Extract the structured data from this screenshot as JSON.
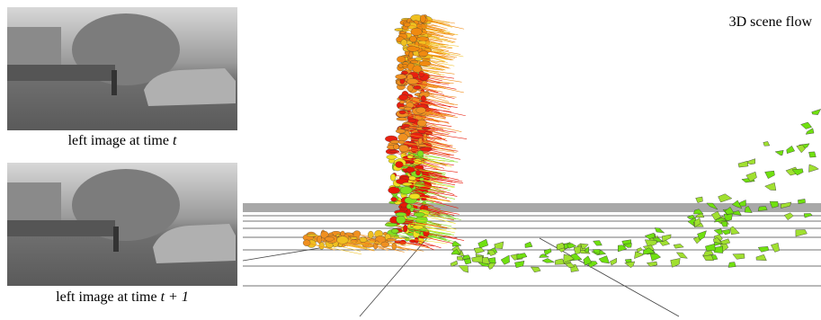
{
  "panels": [
    {
      "caption": {
        "text": "left image at time",
        "variable": "t"
      }
    },
    {
      "caption": {
        "text": "left image at time",
        "variable": "t + 1"
      }
    }
  ],
  "scene": {
    "label": "3D scene flow"
  }
}
